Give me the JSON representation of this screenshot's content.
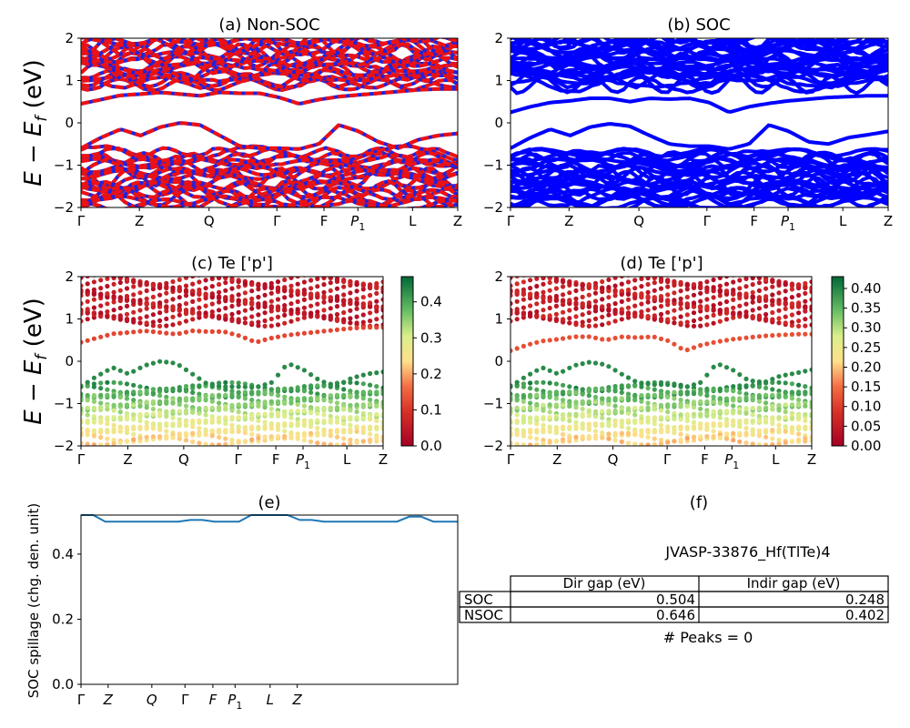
{
  "figure": {
    "panel_titles": {
      "a": "(a) Non-SOC",
      "b": "(b) SOC",
      "c": "(c)  Te ['p']",
      "d": "(d) Te ['p']",
      "e": "(e)",
      "f": "(f)"
    },
    "energy_ylabel_main": "E − E",
    "energy_ylabel_sub": "f",
    "energy_ylabel_unit": " (eV)",
    "spillage_ylabel": "SOC spillage (chg. den. unit)",
    "kpath_labels": [
      "Γ",
      "Z",
      "Q",
      "Γ",
      "F",
      "P",
      "L",
      "Z"
    ],
    "p1_subscript": "1",
    "energy_ticks": [
      "2",
      "1",
      "0",
      "−1",
      "−2"
    ],
    "colorbar_c_ticks": [
      "0.4",
      "0.3",
      "0.2",
      "0.1",
      "0.0"
    ],
    "colorbar_d_ticks": [
      "0.40",
      "0.35",
      "0.30",
      "0.25",
      "0.20",
      "0.15",
      "0.10",
      "0.05",
      "0.00"
    ],
    "spillage_ticks": [
      "0.4",
      "0.2",
      "0.0"
    ]
  },
  "info": {
    "material": "JVASP-33876_Hf(TlTe)4",
    "table_headers": [
      "Dir gap (eV)",
      "Indir gap (eV)"
    ],
    "table_rows": [
      {
        "label": "SOC",
        "dir": "0.504",
        "indir": "0.248"
      },
      {
        "label": "NSOC",
        "dir": "0.646",
        "indir": "0.402"
      }
    ],
    "peaks": "# Peaks = 0"
  },
  "colors": {
    "nsoc_band_red": "#ee1111",
    "nsoc_band_blue": "#2222dd",
    "soc_band": "#0000ff",
    "spillage_line": "#1f77b4"
  },
  "chart_data": [
    {
      "panel": "a",
      "type": "line",
      "title": "(a) Non-SOC",
      "ylabel": "E − E_f (eV)",
      "ylim": [
        -2,
        2
      ],
      "x_ticks": [
        "Γ",
        "Z",
        "Q",
        "Γ",
        "F",
        "P1",
        "L",
        "Z"
      ],
      "series": [
        {
          "values": [
            0.45,
            0.55,
            0.65,
            0.68,
            0.72,
            0.68,
            0.64,
            0.72,
            0.7,
            0.7,
            0.6,
            0.45,
            0.55,
            0.62,
            0.66,
            0.7,
            0.74,
            0.78,
            0.8,
            0.8
          ]
        },
        {
          "values": [
            -0.6,
            -0.35,
            -0.15,
            -0.3,
            -0.1,
            0.0,
            -0.05,
            -0.3,
            -0.55,
            -0.6,
            -0.6,
            -0.62,
            -0.5,
            -0.05,
            -0.2,
            -0.45,
            -0.6,
            -0.4,
            -0.3,
            -0.25
          ]
        }
      ]
    },
    {
      "panel": "b",
      "type": "line",
      "title": "(b) SOC",
      "ylim": [
        -2,
        2
      ],
      "x_ticks": [
        "Γ",
        "Z",
        "Q",
        "Γ",
        "F",
        "P1",
        "L",
        "Z"
      ],
      "series": [
        {
          "values": [
            0.25,
            0.38,
            0.48,
            0.52,
            0.58,
            0.58,
            0.5,
            0.58,
            0.56,
            0.58,
            0.48,
            0.25,
            0.38,
            0.46,
            0.52,
            0.56,
            0.6,
            0.62,
            0.64,
            0.64
          ]
        },
        {
          "values": [
            -0.6,
            -0.35,
            -0.15,
            -0.3,
            -0.1,
            -0.02,
            -0.08,
            -0.3,
            -0.5,
            -0.55,
            -0.55,
            -0.62,
            -0.5,
            -0.05,
            -0.2,
            -0.45,
            -0.5,
            -0.35,
            -0.28,
            -0.2
          ]
        }
      ]
    },
    {
      "panel": "c",
      "type": "scatter",
      "title": "(c)  Te ['p']",
      "ylim": [
        -2,
        2
      ],
      "colorbar_range": [
        0.0,
        0.47
      ]
    },
    {
      "panel": "d",
      "type": "scatter",
      "title": "(d) Te ['p']",
      "ylim": [
        -2,
        2
      ],
      "colorbar_range": [
        0.0,
        0.43
      ]
    },
    {
      "panel": "e",
      "type": "line",
      "title": "(e)",
      "ylabel": "SOC spillage (chg. den. unit)",
      "ylim": [
        0.0,
        0.52
      ],
      "x_ticks": [
        "Γ",
        "Z",
        "Q",
        "Γ",
        "F",
        "P1",
        "L",
        "Z"
      ],
      "series": [
        {
          "values": [
            0.52,
            0.52,
            0.5,
            0.5,
            0.5,
            0.5,
            0.5,
            0.5,
            0.5,
            0.505,
            0.505,
            0.5,
            0.5,
            0.5,
            0.52,
            0.52,
            0.52,
            0.52,
            0.505,
            0.505,
            0.5,
            0.5,
            0.5,
            0.5,
            0.5,
            0.5,
            0.5,
            0.515,
            0.515,
            0.5,
            0.5,
            0.5
          ]
        }
      ]
    }
  ]
}
